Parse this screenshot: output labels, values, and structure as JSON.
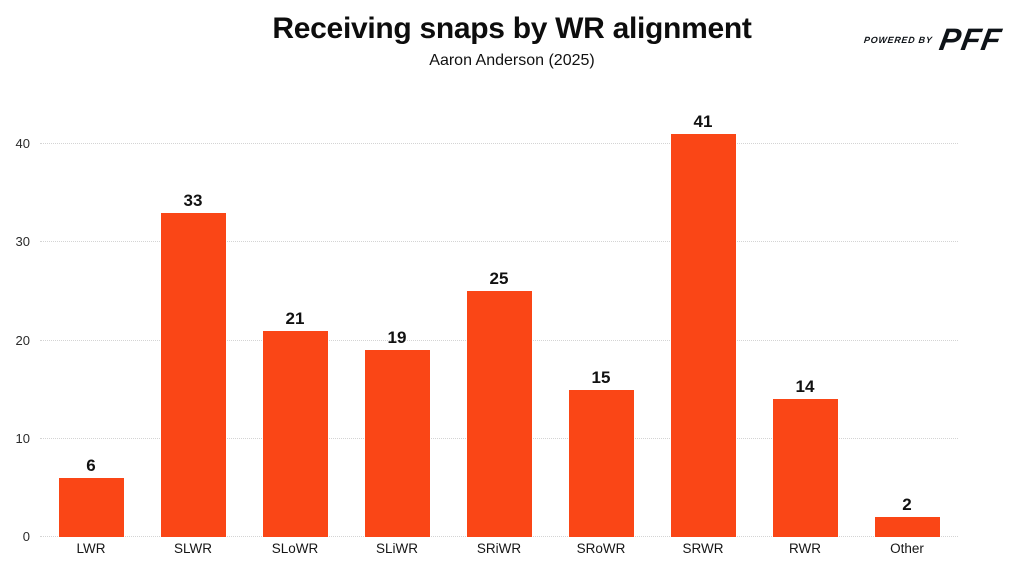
{
  "header": {
    "title": "Receiving snaps by WR alignment",
    "subtitle": "Aaron Anderson (2025)"
  },
  "logo": {
    "powered_by": "POWERED BY",
    "brand": "PFF",
    "color": "#0e1318"
  },
  "chart_data": {
    "type": "bar",
    "title": "Receiving snaps by WR alignment",
    "subtitle": "Aaron Anderson (2025)",
    "categories": [
      "LWR",
      "SLWR",
      "SLoWR",
      "SLiWR",
      "SRiWR",
      "SRoWR",
      "SRWR",
      "RWR",
      "Other"
    ],
    "values": [
      6,
      33,
      21,
      19,
      25,
      15,
      41,
      14,
      2
    ],
    "xlabel": "",
    "ylabel": "",
    "ylim": [
      0,
      44
    ],
    "yticks": [
      0,
      10,
      20,
      30,
      40
    ],
    "bar_color": "#fa4616",
    "value_label_color": "#111111",
    "gridline_color": "#d4d4d4",
    "grid": true,
    "value_labels": true,
    "legend": "none"
  }
}
